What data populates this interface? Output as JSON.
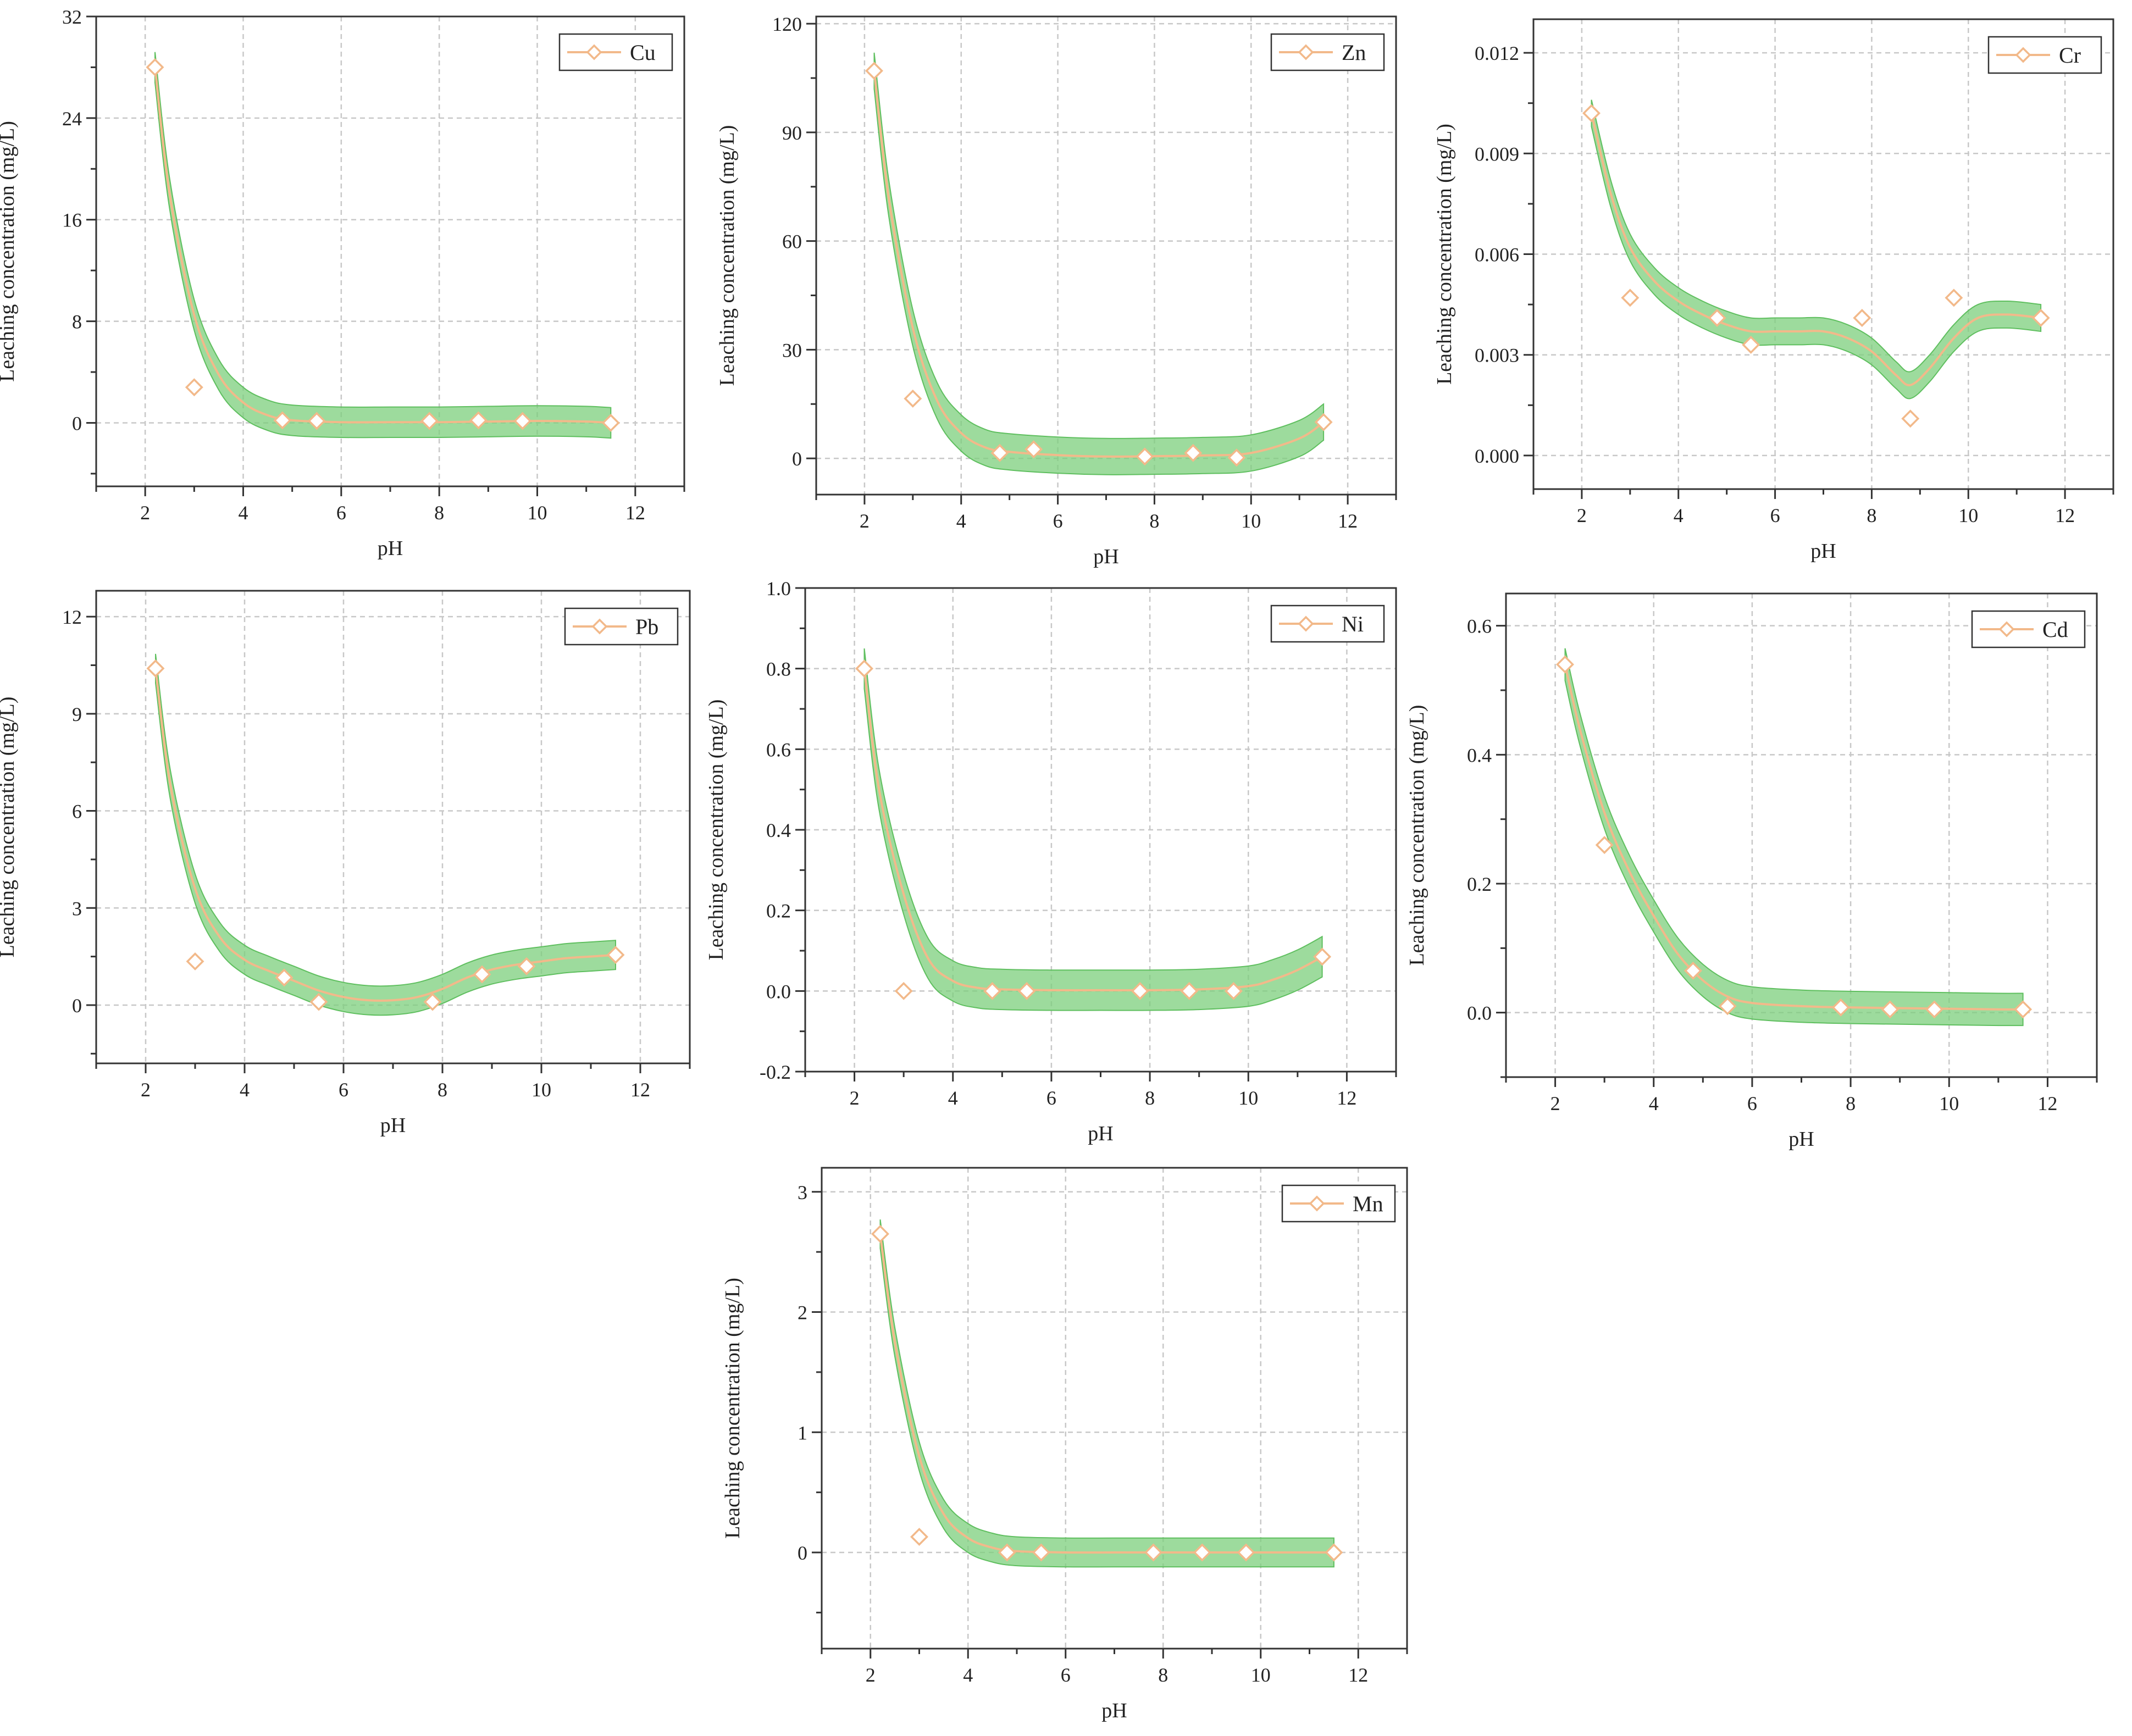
{
  "figure": {
    "colors": {
      "band_fill": "#7ccf7c",
      "band_stroke": "#5fbf5f",
      "fit_line": "#f2b98a",
      "marker": "#f2b98a",
      "grid": "#c8c8c8",
      "axis": "#333333"
    }
  },
  "chart_data": [
    {
      "id": "cu",
      "type": "scatter",
      "series": [
        {
          "name": "Cu",
          "x": [
            2.2,
            3.0,
            4.8,
            5.5,
            7.8,
            8.8,
            9.7,
            11.5
          ],
          "y": [
            28.0,
            2.8,
            0.2,
            0.15,
            0.15,
            0.2,
            0.15,
            0.0
          ]
        }
      ],
      "fit": {
        "x": [
          2.2,
          2.5,
          3.0,
          3.5,
          4.0,
          4.5,
          5.0,
          6.0,
          7.0,
          8.0,
          9.0,
          10.0,
          11.0,
          11.5
        ],
        "y": [
          28.0,
          18.0,
          8.5,
          3.8,
          1.6,
          0.6,
          0.2,
          0.05,
          0.05,
          0.05,
          0.1,
          0.15,
          0.1,
          0.0
        ],
        "band": 1.2
      },
      "xlabel": "pH",
      "ylabel": "Leaching concentration (mg/L)",
      "xlim": [
        1,
        13
      ],
      "ylim": [
        -5,
        32
      ],
      "xticks": [
        2,
        4,
        6,
        8,
        10,
        12
      ],
      "xtick_labels": [
        "2",
        "4",
        "6",
        "8",
        "10",
        "12"
      ],
      "yticks": [
        0,
        8,
        16,
        24,
        32
      ],
      "ytick_labels": [
        "0",
        "8",
        "16",
        "24",
        "32"
      ],
      "legend": "top-right",
      "grid": true
    },
    {
      "id": "zn",
      "type": "scatter",
      "series": [
        {
          "name": "Zn",
          "x": [
            2.2,
            3.0,
            4.8,
            5.5,
            7.8,
            8.8,
            9.7,
            11.5
          ],
          "y": [
            107,
            16.5,
            1.5,
            2.5,
            0.5,
            1.5,
            0.2,
            10.0
          ]
        }
      ],
      "fit": {
        "x": [
          2.2,
          2.5,
          3.0,
          3.5,
          4.0,
          4.5,
          5.0,
          6.0,
          7.0,
          8.0,
          9.0,
          10.0,
          11.0,
          11.5
        ],
        "y": [
          107,
          72,
          36,
          16,
          7,
          3,
          1.8,
          0.9,
          0.5,
          0.6,
          0.8,
          1.5,
          5.5,
          10.0
        ],
        "band": 5
      },
      "xlabel": "pH",
      "ylabel": "Leaching concentration (mg/L)",
      "xlim": [
        1,
        13
      ],
      "ylim": [
        -10,
        122
      ],
      "xticks": [
        2,
        4,
        6,
        8,
        10,
        12
      ],
      "xtick_labels": [
        "2",
        "4",
        "6",
        "8",
        "10",
        "12"
      ],
      "yticks": [
        0,
        30,
        60,
        90,
        120
      ],
      "ytick_labels": [
        "0",
        "30",
        "60",
        "90",
        "120"
      ],
      "legend": "top-right",
      "grid": true
    },
    {
      "id": "cr",
      "type": "scatter",
      "series": [
        {
          "name": "Cr",
          "x": [
            2.2,
            3.0,
            4.8,
            5.5,
            7.8,
            8.8,
            9.7,
            11.5
          ],
          "y": [
            0.0102,
            0.0047,
            0.0041,
            0.0033,
            0.0041,
            0.0011,
            0.0047,
            0.0041
          ]
        }
      ],
      "fit": {
        "x": [
          2.2,
          2.6,
          3.0,
          3.5,
          4.0,
          4.5,
          5.0,
          5.5,
          6.0,
          6.5,
          7.0,
          7.5,
          8.0,
          8.5,
          8.8,
          9.2,
          9.7,
          10.2,
          10.8,
          11.5
        ],
        "y": [
          0.0102,
          0.0078,
          0.0062,
          0.0052,
          0.0046,
          0.0042,
          0.0039,
          0.0037,
          0.0037,
          0.0037,
          0.0037,
          0.0035,
          0.0031,
          0.0024,
          0.0021,
          0.0026,
          0.0035,
          0.0041,
          0.0042,
          0.0041
        ],
        "band": 0.0004
      },
      "xlabel": "pH",
      "ylabel": "Leaching concentration (mg/L)",
      "xlim": [
        1,
        13
      ],
      "ylim": [
        -0.001,
        0.013
      ],
      "xticks": [
        2,
        4,
        6,
        8,
        10,
        12
      ],
      "xtick_labels": [
        "2",
        "4",
        "6",
        "8",
        "10",
        "12"
      ],
      "yticks": [
        0,
        0.003,
        0.006,
        0.009,
        0.012
      ],
      "ytick_labels": [
        "0.000",
        "0.003",
        "0.006",
        "0.009",
        "0.012"
      ],
      "legend": "top-right",
      "grid": true
    },
    {
      "id": "pb",
      "type": "scatter",
      "series": [
        {
          "name": "Pb",
          "x": [
            2.2,
            3.0,
            4.8,
            5.5,
            7.8,
            8.8,
            9.7,
            11.5
          ],
          "y": [
            10.4,
            1.35,
            0.85,
            0.1,
            0.1,
            0.95,
            1.2,
            1.55
          ]
        }
      ],
      "fit": {
        "x": [
          2.2,
          2.5,
          3.0,
          3.5,
          4.0,
          4.5,
          5.0,
          5.5,
          6.0,
          6.5,
          7.0,
          7.5,
          8.0,
          8.5,
          9.0,
          9.5,
          10.0,
          10.5,
          11.0,
          11.5
        ],
        "y": [
          10.4,
          6.8,
          3.6,
          2.1,
          1.4,
          1.05,
          0.75,
          0.45,
          0.25,
          0.15,
          0.15,
          0.25,
          0.5,
          0.85,
          1.1,
          1.25,
          1.35,
          1.45,
          1.5,
          1.55
        ],
        "band": 0.45
      },
      "xlabel": "pH",
      "ylabel": "Leaching concentration (mg/L)",
      "xlim": [
        1,
        13
      ],
      "ylim": [
        -1.8,
        12.8
      ],
      "xticks": [
        2,
        4,
        6,
        8,
        10,
        12
      ],
      "xtick_labels": [
        "2",
        "4",
        "6",
        "8",
        "10",
        "12"
      ],
      "yticks": [
        0,
        3,
        6,
        9,
        12
      ],
      "ytick_labels": [
        "0",
        "3",
        "6",
        "9",
        "12"
      ],
      "legend": "top-right",
      "grid": true
    },
    {
      "id": "ni",
      "type": "scatter",
      "series": [
        {
          "name": "Ni",
          "x": [
            2.2,
            3.0,
            4.8,
            5.5,
            7.8,
            8.8,
            9.7,
            11.5
          ],
          "y": [
            0.8,
            0.0,
            0.0,
            0.0,
            0.0,
            0.0,
            0.0,
            0.085
          ]
        }
      ],
      "fit": {
        "x": [
          2.2,
          2.5,
          3.0,
          3.5,
          4.0,
          4.5,
          5.0,
          6.0,
          7.0,
          8.0,
          9.0,
          10.0,
          10.5,
          11.0,
          11.5
        ],
        "y": [
          0.8,
          0.5,
          0.24,
          0.08,
          0.025,
          0.008,
          0.004,
          0.002,
          0.002,
          0.002,
          0.004,
          0.012,
          0.028,
          0.052,
          0.085
        ],
        "band": 0.05
      },
      "xlabel": "pH",
      "ylabel": "Leaching concentration (mg/L)",
      "xlim": [
        1,
        13
      ],
      "ylim": [
        -0.2,
        1.0
      ],
      "xticks": [
        2,
        4,
        6,
        8,
        10,
        12
      ],
      "xtick_labels": [
        "2",
        "4",
        "6",
        "8",
        "10",
        "12"
      ],
      "yticks": [
        -0.2,
        0,
        0.2,
        0.4,
        0.6,
        0.8,
        1.0
      ],
      "ytick_labels": [
        "-0.2",
        "0.0",
        "0.2",
        "0.4",
        "0.6",
        "0.8",
        "1.0"
      ],
      "legend": "top-right",
      "grid": true
    },
    {
      "id": "cd",
      "type": "scatter",
      "series": [
        {
          "name": "Cd",
          "x": [
            2.2,
            3.0,
            4.8,
            5.5,
            7.8,
            8.8,
            9.7,
            11.5
          ],
          "y": [
            0.54,
            0.26,
            0.065,
            0.01,
            0.008,
            0.005,
            0.005,
            0.005
          ]
        }
      ],
      "fit": {
        "x": [
          2.2,
          2.5,
          3.0,
          3.5,
          4.0,
          4.5,
          5.0,
          5.5,
          6.0,
          7.0,
          8.0,
          9.0,
          10.0,
          11.0,
          11.5
        ],
        "y": [
          0.54,
          0.44,
          0.31,
          0.22,
          0.15,
          0.09,
          0.05,
          0.025,
          0.015,
          0.01,
          0.008,
          0.007,
          0.006,
          0.005,
          0.005
        ],
        "band": 0.025
      },
      "xlabel": "pH",
      "ylabel": "Leaching concentration (mg/L)",
      "xlim": [
        1,
        13
      ],
      "ylim": [
        -0.1,
        0.65
      ],
      "xticks": [
        2,
        4,
        6,
        8,
        10,
        12
      ],
      "xtick_labels": [
        "2",
        "4",
        "6",
        "8",
        "10",
        "12"
      ],
      "yticks": [
        0,
        0.2,
        0.4,
        0.6
      ],
      "ytick_labels": [
        "0.0",
        "0.2",
        "0.4",
        "0.6"
      ],
      "legend": "top-right",
      "grid": true
    },
    {
      "id": "mn",
      "type": "scatter",
      "series": [
        {
          "name": "Mn",
          "x": [
            2.2,
            3.0,
            4.8,
            5.5,
            7.8,
            8.8,
            9.7,
            11.5
          ],
          "y": [
            2.65,
            0.13,
            0.0,
            0.0,
            0.0,
            0.0,
            0.0,
            0.0
          ]
        }
      ],
      "fit": {
        "x": [
          2.2,
          2.5,
          3.0,
          3.5,
          4.0,
          4.5,
          5.0,
          6.0,
          7.0,
          8.0,
          9.0,
          10.0,
          11.0,
          11.5
        ],
        "y": [
          2.65,
          1.75,
          0.8,
          0.32,
          0.12,
          0.04,
          0.01,
          0.0,
          0.0,
          0.0,
          0.0,
          0.0,
          0.0,
          0.0
        ],
        "band": 0.12
      },
      "xlabel": "pH",
      "ylabel": "Leaching concentration (mg/L)",
      "xlim": [
        1,
        13
      ],
      "ylim": [
        -0.8,
        3.2
      ],
      "xticks": [
        2,
        4,
        6,
        8,
        10,
        12
      ],
      "xtick_labels": [
        "2",
        "4",
        "6",
        "8",
        "10",
        "12"
      ],
      "yticks": [
        0,
        1,
        2,
        3
      ],
      "ytick_labels": [
        "0",
        "1",
        "2",
        "3"
      ],
      "legend": "top-right",
      "grid": true
    }
  ]
}
